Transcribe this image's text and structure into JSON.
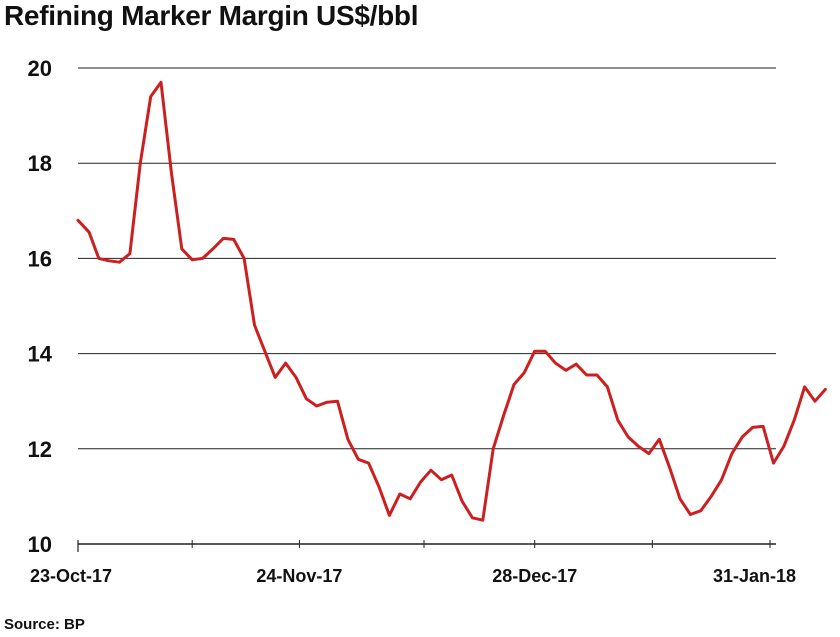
{
  "chart_data": {
    "type": "line",
    "title": "Refining Marker Margin US$/bbl",
    "source": "Source: BP",
    "xlabel": "",
    "ylabel": "",
    "ylim": [
      10,
      20
    ],
    "yticks": [
      10,
      12,
      14,
      16,
      18,
      20
    ],
    "grid": true,
    "legend": "none",
    "line_color": "#cc1f1f",
    "x_start": "23-Oct-17",
    "x_end": "31-Jan-18",
    "x_tick_labels": [
      {
        "label": "23-Oct-17",
        "x": 0
      },
      {
        "label": "24-Nov-17",
        "x": 32
      },
      {
        "label": "28-Dec-17",
        "x": 66
      },
      {
        "label": "31-Jan-18",
        "x": 100
      }
    ],
    "x_minor_ticks": [
      0,
      16.5,
      32,
      50,
      66,
      83,
      100
    ],
    "series": [
      {
        "values": [
          [
            0,
            16.8
          ],
          [
            1.6,
            16.55
          ],
          [
            3,
            16.0
          ],
          [
            4.5,
            15.95
          ],
          [
            6,
            15.92
          ],
          [
            7.5,
            16.1
          ],
          [
            9,
            18.0
          ],
          [
            10.5,
            19.4
          ],
          [
            12,
            19.7
          ],
          [
            13.5,
            17.8
          ],
          [
            15,
            16.2
          ],
          [
            16.5,
            15.97
          ],
          [
            18,
            16.0
          ],
          [
            19.5,
            16.2
          ],
          [
            21,
            16.42
          ],
          [
            22.5,
            16.4
          ],
          [
            24,
            16.0
          ],
          [
            25.5,
            14.6
          ],
          [
            27,
            14.05
          ],
          [
            28.5,
            13.5
          ],
          [
            30,
            13.8
          ],
          [
            31.5,
            13.5
          ],
          [
            33,
            13.05
          ],
          [
            34.5,
            12.9
          ],
          [
            36,
            12.98
          ],
          [
            37.5,
            13.0
          ],
          [
            39,
            12.2
          ],
          [
            40.5,
            11.78
          ],
          [
            42,
            11.7
          ],
          [
            43.5,
            11.2
          ],
          [
            45,
            10.6
          ],
          [
            46.5,
            11.05
          ],
          [
            48,
            10.95
          ],
          [
            49.5,
            11.3
          ],
          [
            51,
            11.55
          ],
          [
            52.5,
            11.35
          ],
          [
            54,
            11.45
          ],
          [
            55.5,
            10.9
          ],
          [
            57,
            10.55
          ],
          [
            58.5,
            10.5
          ],
          [
            60,
            12.0
          ],
          [
            61.5,
            12.7
          ],
          [
            63,
            13.35
          ],
          [
            64.5,
            13.6
          ],
          [
            66,
            14.05
          ],
          [
            67.5,
            14.05
          ],
          [
            69,
            13.8
          ],
          [
            70.5,
            13.65
          ],
          [
            72,
            13.78
          ],
          [
            73.5,
            13.55
          ],
          [
            75,
            13.55
          ],
          [
            76.5,
            13.3
          ],
          [
            78,
            12.6
          ],
          [
            79.5,
            12.25
          ],
          [
            81,
            12.05
          ],
          [
            82.5,
            11.9
          ],
          [
            84,
            12.2
          ],
          [
            85.5,
            11.6
          ],
          [
            87,
            10.95
          ],
          [
            88.5,
            10.62
          ],
          [
            90,
            10.7
          ],
          [
            91.5,
            11.0
          ],
          [
            93,
            11.35
          ],
          [
            94.5,
            11.9
          ],
          [
            96,
            12.25
          ],
          [
            97.5,
            12.45
          ],
          [
            99,
            12.47
          ],
          [
            100.5,
            11.7
          ],
          [
            102,
            12.05
          ],
          [
            103.5,
            12.6
          ],
          [
            105,
            13.3
          ],
          [
            106.5,
            13.0
          ],
          [
            108,
            13.25
          ]
        ]
      }
    ]
  }
}
